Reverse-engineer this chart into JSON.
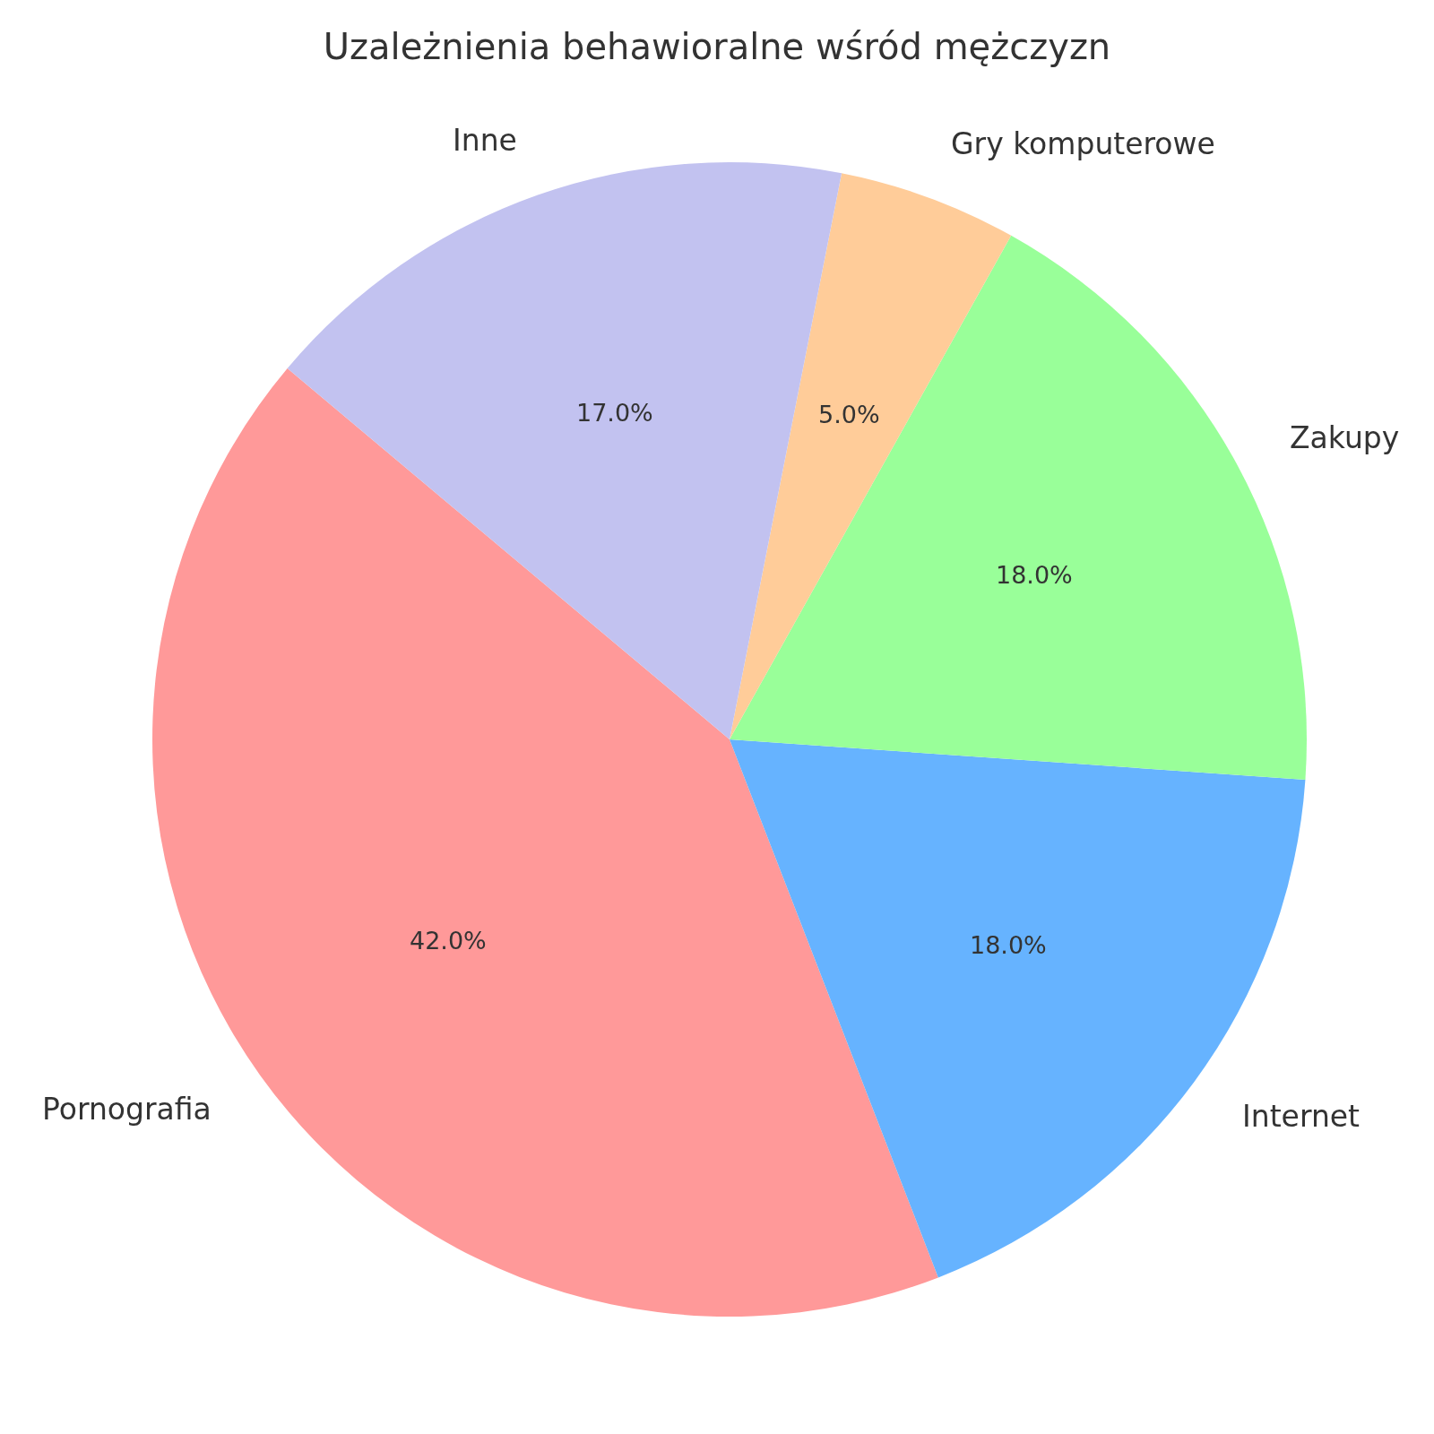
{
  "chart_data": {
    "type": "pie",
    "title": "Uzależnienia behawioralne wśród mężczyzn",
    "categories": [
      "Pornografia",
      "Internet",
      "Zakupy",
      "Gry komputerowe",
      "Inne"
    ],
    "values": [
      42,
      18,
      18,
      5,
      17
    ],
    "colors": [
      "#ff9999",
      "#66b3ff",
      "#99ff99",
      "#ffcc99",
      "#c2c2f0"
    ],
    "value_labels": [
      "42.0%",
      "18.0%",
      "18.0%",
      "5.0%",
      "17.0%"
    ]
  }
}
